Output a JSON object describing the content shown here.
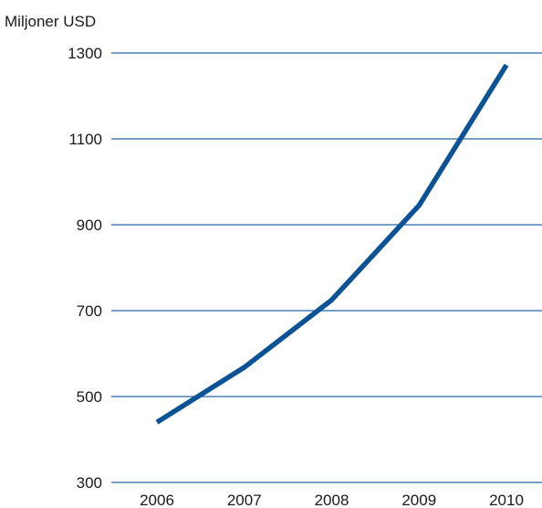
{
  "chart_data": {
    "type": "line",
    "ylabel": "Miljoner USD",
    "x": [
      "2006",
      "2007",
      "2008",
      "2009",
      "2010"
    ],
    "series": [
      {
        "values": [
          440,
          568,
          725,
          945,
          1272
        ]
      }
    ],
    "y_ticks": [
      300,
      500,
      700,
      900,
      1100,
      1300
    ],
    "ylim": [
      300,
      1300
    ],
    "grid": true,
    "line_color": "#0b5394",
    "grid_color": "#2b63a8"
  }
}
